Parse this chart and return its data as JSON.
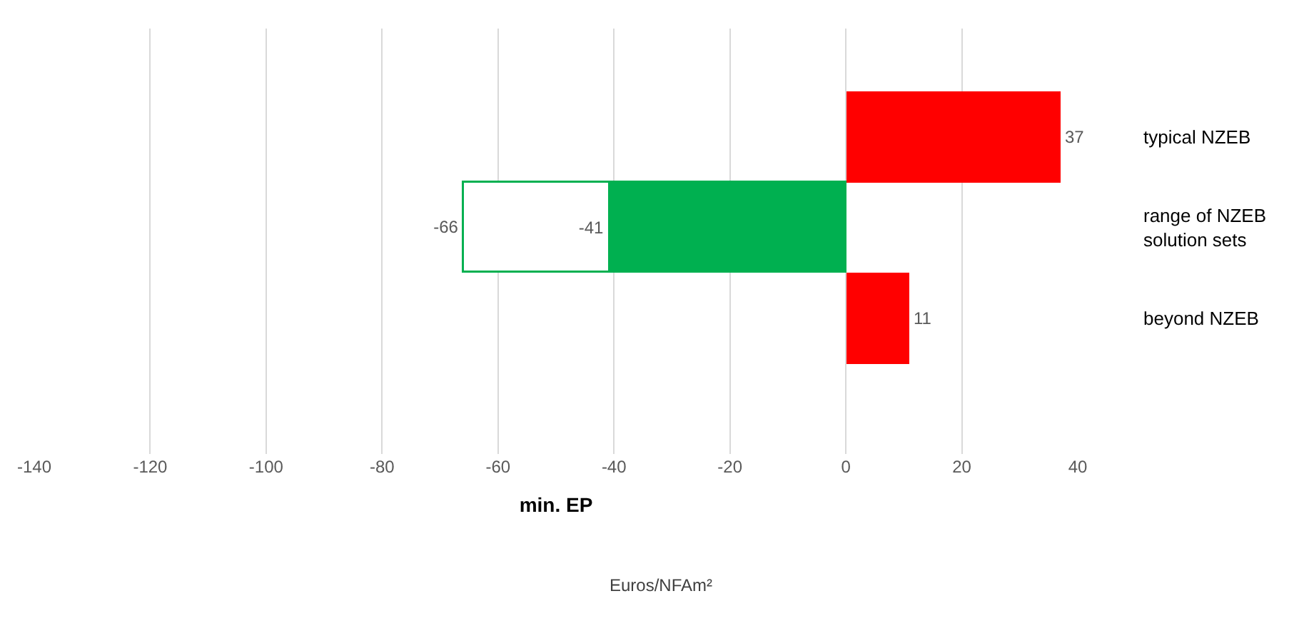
{
  "chart_data": {
    "type": "bar",
    "orientation": "horizontal",
    "categories": [
      "typical NZEB",
      "range of NZEB solution sets",
      "beyond NZEB",
      null
    ],
    "series": [
      {
        "color": "#00b050",
        "values": [
          null,
          -66,
          null,
          null
        ],
        "value_labels": [
          null,
          "-66",
          null,
          null
        ]
      },
      {
        "colors": [
          "#ff0000",
          "#00b050",
          "#ff0000",
          null
        ],
        "values": [
          37,
          -41,
          11,
          null
        ],
        "value_labels": [
          "37",
          "-41",
          "11",
          null
        ]
      }
    ],
    "xlim": [
      -140,
      40
    ],
    "xticks": [
      -140,
      -120,
      -100,
      -80,
      -60,
      -40,
      -20,
      0,
      20,
      40
    ],
    "xlabel": "min. EP",
    "annotations": [
      "Euros/NFAm²"
    ],
    "grid": "x"
  }
}
